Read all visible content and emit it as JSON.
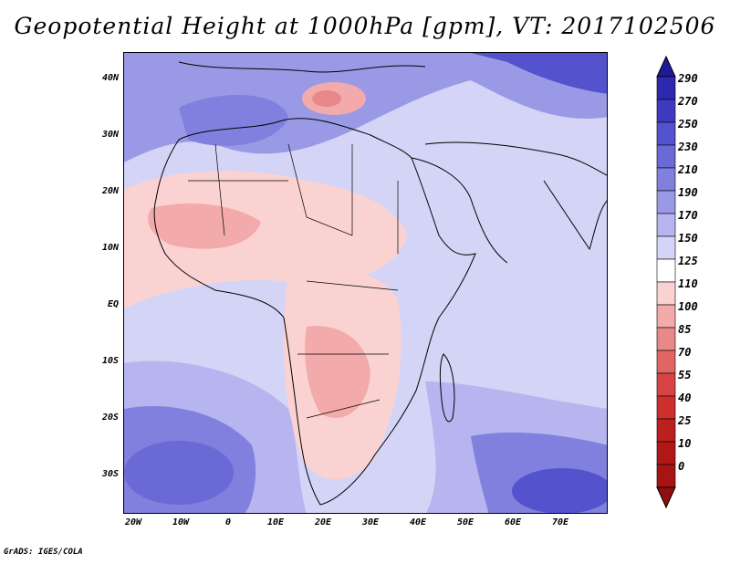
{
  "title": "Geopotential Height at 1000hPa [gpm], VT: 2017102506",
  "footer": "GrADS: IGES/COLA",
  "map": {
    "lon_labels": [
      "20W",
      "10W",
      "0",
      "10E",
      "20E",
      "30E",
      "40E",
      "50E",
      "60E",
      "70E"
    ],
    "lon_values": [
      -20,
      -10,
      0,
      10,
      20,
      30,
      40,
      50,
      60,
      70
    ],
    "lat_labels": [
      "40N",
      "30N",
      "20N",
      "10N",
      "EQ",
      "10S",
      "20S",
      "30S"
    ],
    "lat_values": [
      40,
      30,
      20,
      10,
      0,
      -10,
      -20,
      -30
    ],
    "lon_range": [
      -22,
      80
    ],
    "lat_range": [
      -37,
      45
    ]
  },
  "colorbar": {
    "levels": [
      "290",
      "270",
      "250",
      "230",
      "210",
      "190",
      "170",
      "150",
      "125",
      "110",
      "100",
      "85",
      "70",
      "55",
      "40",
      "25",
      "10",
      "0"
    ],
    "colors": [
      "#1f1a98",
      "#2d28ae",
      "#3f3bc0",
      "#5452cc",
      "#6a69d6",
      "#8180df",
      "#9a99e6",
      "#b6b5ef",
      "#d4d4f6",
      "#ffffff",
      "#fbd2d2",
      "#f2aaaa",
      "#e98888",
      "#e06666",
      "#d84444",
      "#cd2f2f",
      "#bd1f1f",
      "#a81414"
    ],
    "color_names": [
      "navy",
      "dark-blue",
      "blue",
      "medium-blue",
      "indigo-blue",
      "slate-blue",
      "light-slate-blue",
      "lavender",
      "pale-lavender",
      "white",
      "pale-pink",
      "light-pink",
      "pink",
      "salmon",
      "light-red",
      "red",
      "crimson",
      "dark-red"
    ]
  }
}
